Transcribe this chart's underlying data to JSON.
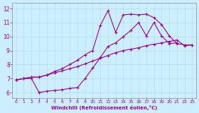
{
  "bg_color": "#cceeff",
  "line_color": "#990099",
  "xlabel": "Windchill (Refroidissement éolien,°C)",
  "xlim": [
    -0.5,
    23.5
  ],
  "ylim": [
    5.6,
    12.4
  ],
  "xticks": [
    0,
    1,
    2,
    3,
    4,
    5,
    6,
    7,
    8,
    9,
    10,
    11,
    12,
    13,
    14,
    15,
    16,
    17,
    18,
    19,
    20,
    21,
    22,
    23
  ],
  "yticks": [
    6,
    7,
    8,
    9,
    10,
    11,
    12
  ],
  "series_linear": {
    "x": [
      0,
      1,
      2,
      3,
      4,
      5,
      6,
      7,
      8,
      9,
      10,
      11,
      12,
      13,
      14,
      15,
      16,
      17,
      18,
      19,
      20,
      21,
      22,
      23
    ],
    "y": [
      6.9,
      7.0,
      7.1,
      7.1,
      7.25,
      7.4,
      7.55,
      7.7,
      7.85,
      8.05,
      8.25,
      8.45,
      8.65,
      8.85,
      9.0,
      9.1,
      9.2,
      9.35,
      9.45,
      9.55,
      9.65,
      9.75,
      9.35,
      9.4
    ]
  },
  "series_bottom": {
    "x": [
      0,
      1,
      2,
      3,
      4,
      5,
      6,
      7,
      8,
      9,
      10,
      11,
      12,
      13,
      14,
      15,
      16,
      17,
      18,
      19,
      20,
      21
    ],
    "y": [
      6.9,
      7.0,
      7.0,
      6.0,
      6.1,
      6.15,
      6.2,
      6.3,
      6.35,
      7.0,
      7.75,
      8.5,
      9.3,
      9.55,
      10.0,
      10.45,
      11.0,
      10.05,
      11.0,
      10.05,
      9.5,
      9.55
    ]
  },
  "series_top": {
    "x": [
      0,
      1,
      2,
      3,
      4,
      5,
      6,
      7,
      8,
      9,
      10,
      11,
      12,
      13,
      14,
      15,
      16,
      17,
      18,
      19,
      20,
      21,
      22,
      23
    ],
    "y": [
      6.9,
      7.0,
      7.1,
      7.1,
      7.25,
      7.5,
      7.7,
      8.0,
      8.3,
      8.7,
      9.0,
      10.8,
      11.85,
      10.3,
      11.55,
      11.6,
      11.55,
      11.6,
      11.35,
      10.85,
      10.05,
      9.5,
      9.4,
      9.4
    ]
  }
}
